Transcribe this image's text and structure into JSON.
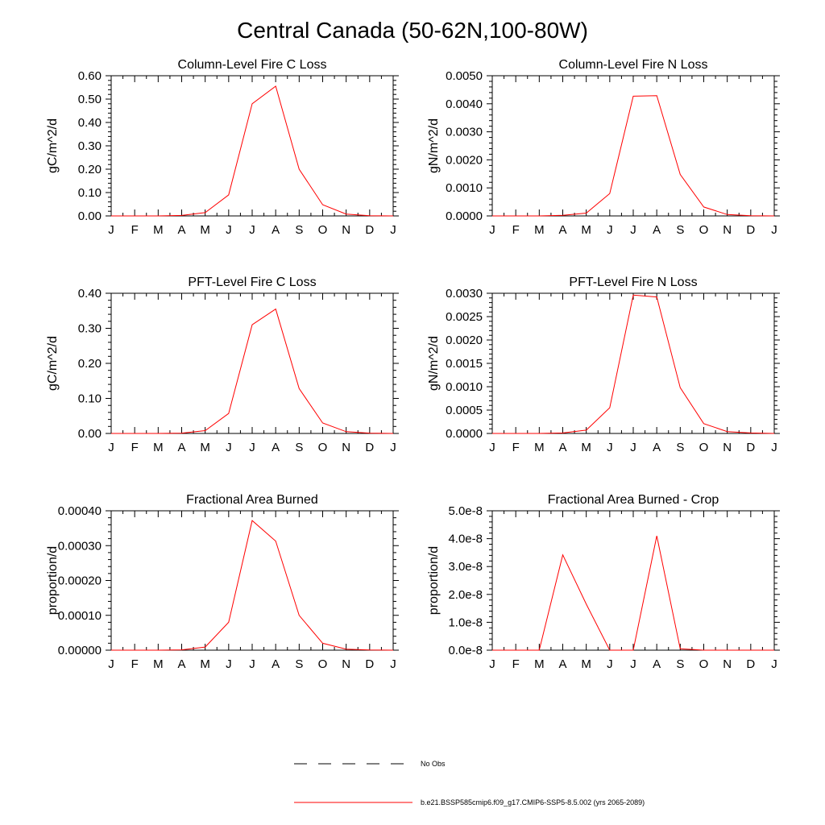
{
  "figure": {
    "title": "Central Canada (50-62N,100-80W)"
  },
  "colors": {
    "series": "#ff0000",
    "obs": "#000000",
    "axis": "#000000"
  },
  "legend": {
    "obs_label": "No Obs",
    "model_label": "b.e21.BSSP585cmip6.f09_g17.CMIP6-SSP5-8.5.002 (yrs 2065-2089)"
  },
  "chart_data": [
    {
      "type": "line",
      "title": "Column-Level Fire C Loss",
      "ylabel": "gC/m^2/d",
      "x_ticks": [
        "J",
        "F",
        "M",
        "A",
        "M",
        "J",
        "J",
        "A",
        "S",
        "O",
        "N",
        "D",
        "J"
      ],
      "ylim": [
        0,
        0.6
      ],
      "y_ticks": [
        "0.00",
        "0.10",
        "0.20",
        "0.30",
        "0.40",
        "0.50",
        "0.60"
      ],
      "series": [
        {
          "values": [
            0,
            0,
            0,
            0.002,
            0.014,
            0.09,
            0.48,
            0.555,
            0.2,
            0.048,
            0.008,
            0.001,
            0
          ]
        }
      ]
    },
    {
      "type": "line",
      "title": "Column-Level Fire N Loss",
      "ylabel": "gN/m^2/d",
      "x_ticks": [
        "J",
        "F",
        "M",
        "A",
        "M",
        "J",
        "J",
        "A",
        "S",
        "O",
        "N",
        "D",
        "J"
      ],
      "ylim": [
        0,
        0.005
      ],
      "y_ticks": [
        "0.0000",
        "0.0010",
        "0.0020",
        "0.0030",
        "0.0040",
        "0.0050"
      ],
      "series": [
        {
          "values": [
            0,
            0,
            0,
            2e-05,
            0.0001,
            0.0008,
            0.00427,
            0.00429,
            0.00148,
            0.00032,
            5e-05,
            1e-05,
            0
          ]
        }
      ]
    },
    {
      "type": "line",
      "title": "PFT-Level Fire C Loss",
      "ylabel": "gC/m^2/d",
      "x_ticks": [
        "J",
        "F",
        "M",
        "A",
        "M",
        "J",
        "J",
        "A",
        "S",
        "O",
        "N",
        "D",
        "J"
      ],
      "ylim": [
        0,
        0.4
      ],
      "y_ticks": [
        "0.00",
        "0.10",
        "0.20",
        "0.30",
        "0.40"
      ],
      "series": [
        {
          "values": [
            0,
            0,
            0,
            0.001,
            0.008,
            0.057,
            0.31,
            0.355,
            0.128,
            0.03,
            0.005,
            0.001,
            0
          ]
        }
      ]
    },
    {
      "type": "line",
      "title": "PFT-Level Fire N Loss",
      "ylabel": "gN/m^2/d",
      "x_ticks": [
        "J",
        "F",
        "M",
        "A",
        "M",
        "J",
        "J",
        "A",
        "S",
        "O",
        "N",
        "D",
        "J"
      ],
      "ylim": [
        0,
        0.003
      ],
      "y_ticks": [
        "0.0000",
        "0.0005",
        "0.0010",
        "0.0015",
        "0.0020",
        "0.0025",
        "0.0030"
      ],
      "series": [
        {
          "values": [
            0,
            0,
            0,
            1e-05,
            7e-05,
            0.00055,
            0.00296,
            0.00292,
            0.00098,
            0.00021,
            4e-05,
            1e-05,
            0
          ]
        }
      ]
    },
    {
      "type": "line",
      "title": "Fractional Area Burned",
      "ylabel": "proportion/d",
      "x_ticks": [
        "J",
        "F",
        "M",
        "A",
        "M",
        "J",
        "J",
        "A",
        "S",
        "O",
        "N",
        "D",
        "J"
      ],
      "ylim": [
        0,
        0.0004
      ],
      "y_ticks": [
        "0.00000",
        "0.00010",
        "0.00020",
        "0.00030",
        "0.00040"
      ],
      "series": [
        {
          "values": [
            0,
            0,
            0,
            1e-06,
            9e-06,
            8e-05,
            0.000372,
            0.000313,
            0.0001,
            2e-05,
            3e-06,
            5e-07,
            0
          ]
        }
      ]
    },
    {
      "type": "line",
      "title": "Fractional Area Burned - Crop",
      "ylabel": "proportion/d",
      "x_ticks": [
        "J",
        "F",
        "M",
        "A",
        "M",
        "J",
        "J",
        "A",
        "S",
        "O",
        "N",
        "D",
        "J"
      ],
      "ylim": [
        0,
        5e-08
      ],
      "y_ticks": [
        "0.0e-8",
        "1.0e-8",
        "2.0e-8",
        "3.0e-8",
        "4.0e-8",
        "5.0e-8"
      ],
      "series": [
        {
          "values": [
            0,
            0,
            0,
            3.42e-08,
            1.65e-08,
            0,
            0,
            4.1e-08,
            5e-10,
            0,
            0,
            0,
            0
          ]
        }
      ]
    }
  ]
}
